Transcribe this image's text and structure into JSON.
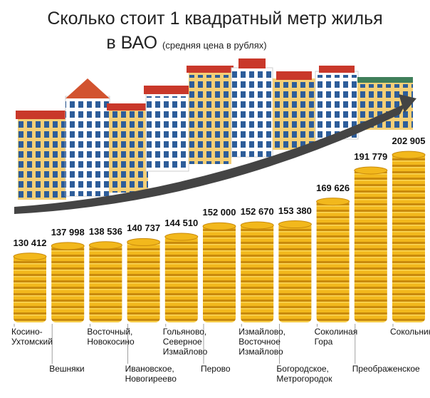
{
  "chart_data": {
    "type": "bar",
    "title": "Сколько стоит 1 квадратный метр жилья",
    "title_line2": "в ВАО",
    "subtitle": "(средняя цена в рублях)",
    "categories": [
      "Косино-\nУхтомский",
      "Вешняки",
      "Восточный,\nНовокосино",
      "Ивановское,\nНовогиреево",
      "Гольяново,\nСеверное\nИзмайлово",
      "Перово",
      "Измайлово,\nВосточное\nИзмайлово",
      "Богородское,\nМетрогородок",
      "Соколиная\nГора",
      "Преображенское",
      "Сокольники"
    ],
    "values": [
      130412,
      137998,
      138536,
      140737,
      144510,
      152000,
      152670,
      153380,
      169626,
      191779,
      202905
    ],
    "value_labels": [
      "130 412",
      "137 998",
      "138 536",
      "140 737",
      "144 510",
      "152 000",
      "152 670",
      "153 380",
      "169 626",
      "191 779",
      "202 905"
    ],
    "color": "#f2b81c",
    "ylim": [
      82000,
      205000
    ]
  }
}
